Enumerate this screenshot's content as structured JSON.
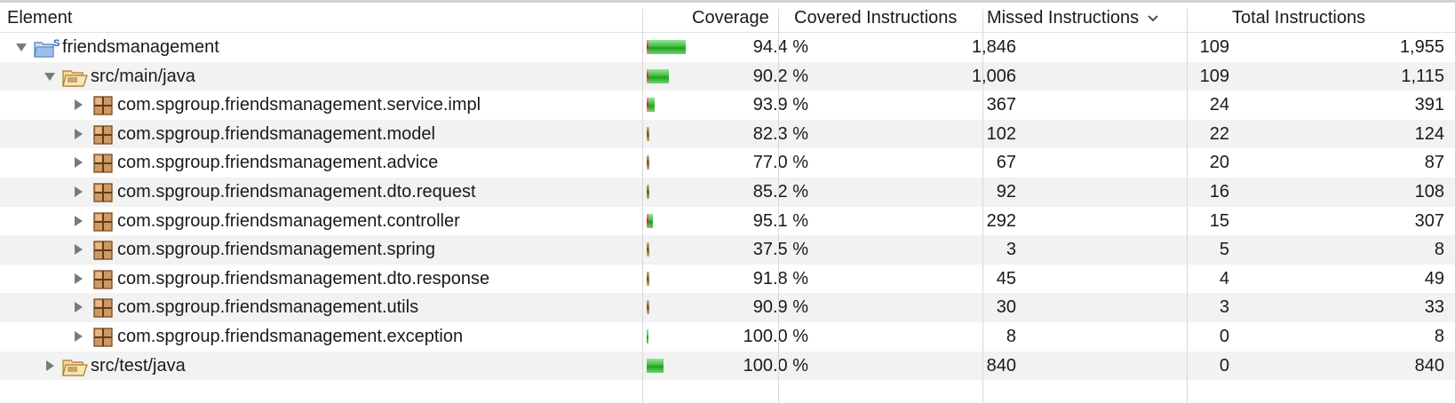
{
  "header": {
    "element": "Element",
    "coverage": "Coverage",
    "covered": "Covered Instructions",
    "missed": "Missed Instructions",
    "total": "Total Instructions",
    "sort_icon": "chevron-down-icon"
  },
  "colors": {
    "covered_bar": "#2eb82e",
    "missed_bar": "#d02020",
    "row_alt": "#f2f2f2"
  },
  "rows": [
    {
      "name": "friendsmanagement",
      "kind": "project",
      "expanded": true,
      "coverage": "94.4 %",
      "covered": "1,846",
      "missed": "109",
      "total": "1,955",
      "covered_count": 1846,
      "missed_count": 109
    },
    {
      "name": "src/main/java",
      "kind": "source-folder",
      "expanded": true,
      "coverage": "90.2 %",
      "covered": "1,006",
      "missed": "109",
      "total": "1,115",
      "covered_count": 1006,
      "missed_count": 109
    },
    {
      "name": "com.spgroup.friendsmanagement.service.impl",
      "kind": "package",
      "expanded": false,
      "coverage": "93.9 %",
      "covered": "367",
      "missed": "24",
      "total": "391",
      "covered_count": 367,
      "missed_count": 24
    },
    {
      "name": "com.spgroup.friendsmanagement.model",
      "kind": "package",
      "expanded": false,
      "coverage": "82.3 %",
      "covered": "102",
      "missed": "22",
      "total": "124",
      "covered_count": 102,
      "missed_count": 22
    },
    {
      "name": "com.spgroup.friendsmanagement.advice",
      "kind": "package",
      "expanded": false,
      "coverage": "77.0 %",
      "covered": "67",
      "missed": "20",
      "total": "87",
      "covered_count": 67,
      "missed_count": 20
    },
    {
      "name": "com.spgroup.friendsmanagement.dto.request",
      "kind": "package",
      "expanded": false,
      "coverage": "85.2 %",
      "covered": "92",
      "missed": "16",
      "total": "108",
      "covered_count": 92,
      "missed_count": 16
    },
    {
      "name": "com.spgroup.friendsmanagement.controller",
      "kind": "package",
      "expanded": false,
      "coverage": "95.1 %",
      "covered": "292",
      "missed": "15",
      "total": "307",
      "covered_count": 292,
      "missed_count": 15
    },
    {
      "name": "com.spgroup.friendsmanagement.spring",
      "kind": "package",
      "expanded": false,
      "coverage": "37.5 %",
      "covered": "3",
      "missed": "5",
      "total": "8",
      "covered_count": 3,
      "missed_count": 5
    },
    {
      "name": "com.spgroup.friendsmanagement.dto.response",
      "kind": "package",
      "expanded": false,
      "coverage": "91.8 %",
      "covered": "45",
      "missed": "4",
      "total": "49",
      "covered_count": 45,
      "missed_count": 4
    },
    {
      "name": "com.spgroup.friendsmanagement.utils",
      "kind": "package",
      "expanded": false,
      "coverage": "90.9 %",
      "covered": "30",
      "missed": "3",
      "total": "33",
      "covered_count": 30,
      "missed_count": 3
    },
    {
      "name": "com.spgroup.friendsmanagement.exception",
      "kind": "package",
      "expanded": false,
      "coverage": "100.0 %",
      "covered": "8",
      "missed": "0",
      "total": "8",
      "covered_count": 8,
      "missed_count": 0
    },
    {
      "name": "src/test/java",
      "kind": "source-folder",
      "expanded": false,
      "coverage": "100.0 %",
      "covered": "840",
      "missed": "0",
      "total": "840",
      "covered_count": 840,
      "missed_count": 0
    }
  ]
}
